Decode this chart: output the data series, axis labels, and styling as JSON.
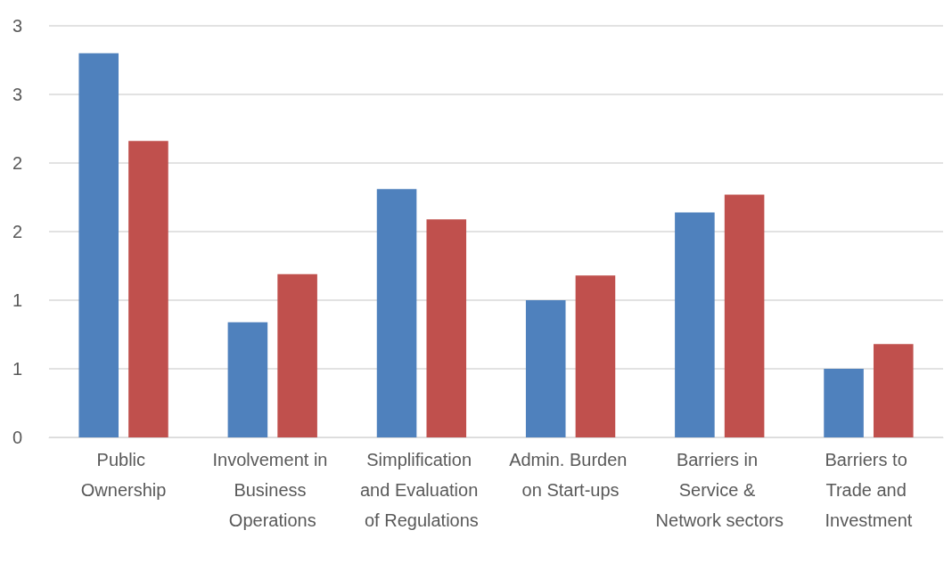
{
  "chart_data": {
    "type": "bar",
    "categories": [
      "Public Ownership",
      "Involvement in Business Operations",
      "Simplification and Evaluation of Regulations",
      "Admin. Burden on Start-ups",
      "Barriers in Service & Network sectors",
      "Barriers to Trade and Investment"
    ],
    "series": [
      {
        "color": "#4f81bd",
        "values": [
          2.8,
          0.84,
          1.81,
          1.0,
          1.64,
          0.5
        ]
      },
      {
        "color": "#c0504d",
        "values": [
          2.16,
          1.19,
          1.59,
          1.18,
          1.77,
          0.68
        ]
      }
    ],
    "ylim": [
      0,
      3
    ],
    "yticks": [
      0,
      {
        "value": 0.5,
        "label": "1"
      },
      1,
      {
        "value": 1.5,
        "label": "2"
      },
      2,
      {
        "value": 2.5,
        "label": "3"
      },
      3
    ],
    "grid": "y"
  }
}
